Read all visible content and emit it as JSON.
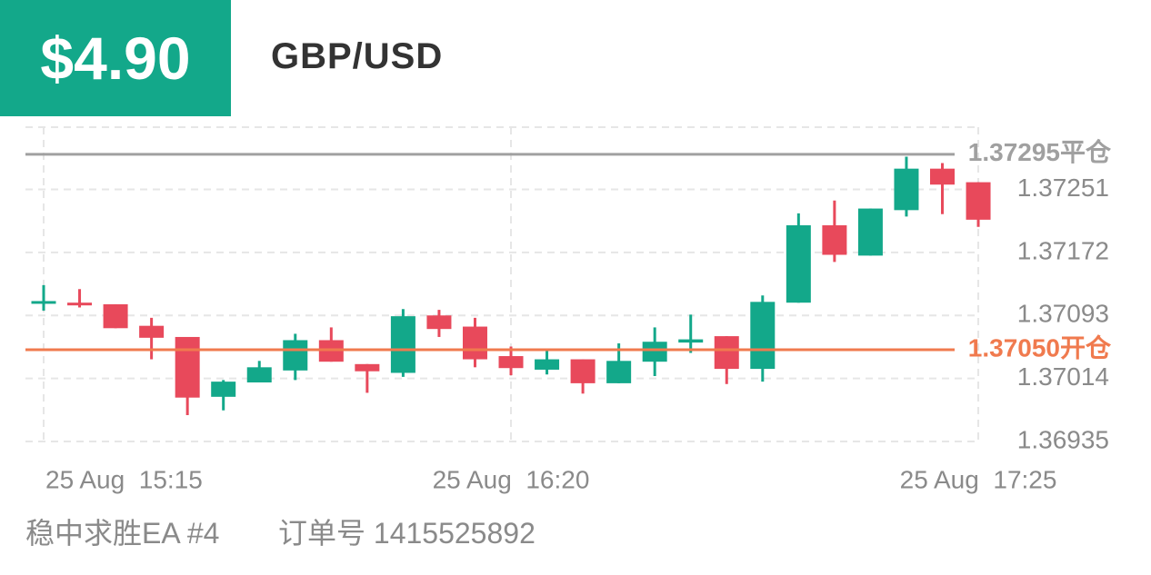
{
  "header": {
    "amount": "$4.90",
    "symbol": "GBP/USD"
  },
  "chart_data": {
    "type": "candlestick",
    "categories": [
      "25 Aug  15:15",
      null,
      null,
      null,
      null,
      null,
      null,
      null,
      null,
      null,
      null,
      null,
      null,
      "25 Aug  16:20",
      null,
      null,
      null,
      null,
      null,
      null,
      null,
      null,
      null,
      null,
      null,
      null,
      "25 Aug  17:25"
    ],
    "open": [
      1.3711,
      1.37109,
      1.37107,
      1.3708,
      1.37066,
      1.36991,
      1.37009,
      1.37024,
      1.37062,
      1.37032,
      1.37021,
      1.37093,
      1.37079,
      1.37042,
      1.37025,
      1.37038,
      1.37008,
      1.37035,
      1.37059,
      1.37067,
      1.37026,
      1.37109,
      1.37206,
      1.37168,
      1.37225,
      1.37277,
      1.3726
    ],
    "high": [
      1.37131,
      1.37126,
      1.37107,
      1.3709,
      1.37066,
      1.37012,
      1.37036,
      1.3707,
      1.37078,
      1.37032,
      1.37101,
      1.371,
      1.3709,
      1.37054,
      1.37049,
      1.37038,
      1.37058,
      1.37078,
      1.37094,
      1.37067,
      1.37118,
      1.37221,
      1.37237,
      1.37227,
      1.37292,
      1.37284,
      1.3726
    ],
    "low": [
      1.37099,
      1.37103,
      1.37077,
      1.37038,
      1.36968,
      1.36974,
      1.37009,
      1.37012,
      1.37035,
      1.36996,
      1.37016,
      1.37066,
      1.37028,
      1.37018,
      1.37019,
      1.36995,
      1.37008,
      1.37017,
      1.37046,
      1.37007,
      1.3701,
      1.37109,
      1.3716,
      1.37168,
      1.37217,
      1.3722,
      1.37204
    ],
    "close": [
      1.37111,
      1.37107,
      1.37077,
      1.37065,
      1.3699,
      1.3701,
      1.37028,
      1.37062,
      1.37035,
      1.37023,
      1.37092,
      1.37076,
      1.37038,
      1.37027,
      1.37038,
      1.37008,
      1.37036,
      1.3706,
      1.37063,
      1.37026,
      1.3711,
      1.37206,
      1.37169,
      1.37227,
      1.37277,
      1.37257,
      1.37213
    ],
    "up_color": "#13a88a",
    "down_color": "#e8495b",
    "ylim": [
      1.36935,
      1.37329
    ],
    "yticks": [
      1.36935,
      1.37014,
      1.37093,
      1.37172,
      1.37251
    ],
    "grid": true,
    "lines": [
      {
        "value": 1.37295,
        "label": "1.37295平仓",
        "color": "#a0a0a0"
      },
      {
        "value": 1.3705,
        "label": "1.37050开仓",
        "color": "#f07a4e"
      }
    ]
  },
  "footer": {
    "strategy": "稳中求胜EA #4",
    "order": "订单号 1415525892"
  }
}
